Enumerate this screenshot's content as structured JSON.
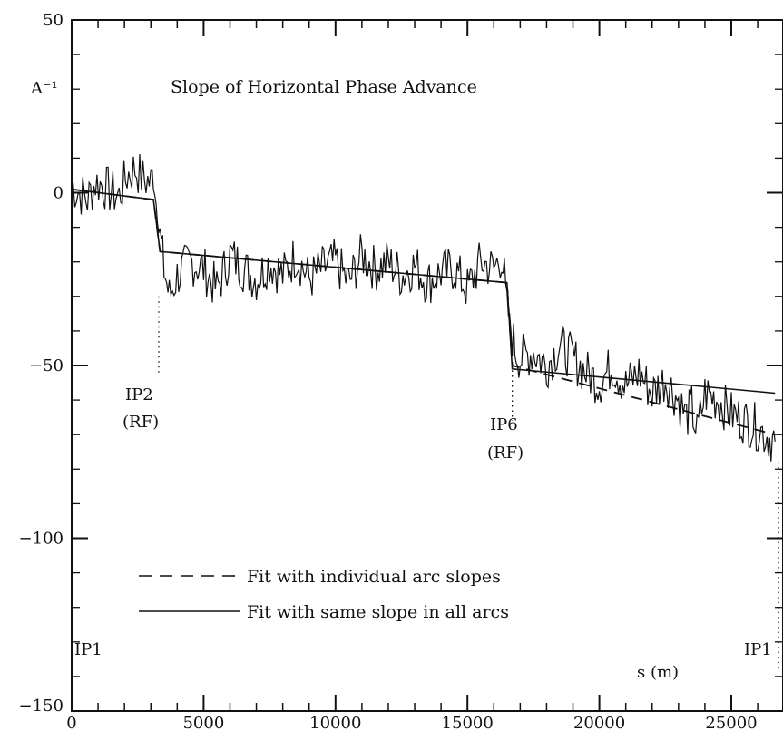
{
  "chart_data": {
    "type": "line",
    "title": "Slope of Horizontal Phase Advance",
    "ylabel": "A⁻¹",
    "xlabel": "s (m)",
    "xlim": [
      0,
      26659
    ],
    "ylim": [
      -150,
      50
    ],
    "xticks": [
      "0",
      "5000",
      "10000",
      "15000",
      "20000",
      "25000"
    ],
    "yticks": [
      "50",
      "0",
      "−50",
      "−100",
      "−150"
    ],
    "grid": false,
    "legend_position": "bottom-left",
    "annotations": [
      {
        "text_lines": [
          "IP2",
          "(RF)"
        ],
        "x": 3300,
        "y": -55
      },
      {
        "text_lines": [
          "IP6",
          "(RF)"
        ],
        "x": 16700,
        "y": -70
      },
      {
        "text_lines": [
          "IP1"
        ],
        "x": 0,
        "y": -140
      },
      {
        "text_lines": [
          "IP1"
        ],
        "x": 26659,
        "y": -140
      }
    ],
    "series": [
      {
        "name": "",
        "style": "noisy",
        "x": [
          0,
          300,
          600,
          900,
          1200,
          1500,
          1800,
          2100,
          2400,
          2700,
          3000,
          3100,
          3200,
          3300,
          3350,
          3500,
          3700,
          4000,
          4500,
          5000,
          5500,
          6000,
          6500,
          7000,
          7500,
          8000,
          8500,
          9000,
          9500,
          10000,
          10500,
          11000,
          11500,
          12000,
          12500,
          13000,
          13500,
          14000,
          14500,
          15000,
          15500,
          16000,
          16300,
          16400,
          16500,
          16600,
          16800,
          17000,
          17500,
          18000,
          18500,
          19000,
          19500,
          20000,
          20500,
          21000,
          21500,
          22000,
          22500,
          23000,
          23300,
          23500,
          23700,
          24000,
          24500,
          25000,
          25500,
          26000,
          26300,
          26659
        ],
        "y": [
          2,
          0,
          -2,
          3,
          2,
          0,
          -1,
          5,
          7,
          4,
          3,
          6,
          -3,
          -8,
          -12,
          -22,
          -30,
          -24,
          -20,
          -22,
          -28,
          -18,
          -22,
          -25,
          -20,
          -24,
          -18,
          -25,
          -22,
          -20,
          -26,
          -18,
          -22,
          -20,
          -24,
          -21,
          -26,
          -23,
          -22,
          -28,
          -20,
          -22,
          -18,
          -25,
          -32,
          -38,
          -45,
          -48,
          -46,
          -50,
          -44,
          -48,
          -52,
          -55,
          -50,
          -56,
          -52,
          -58,
          -54,
          -60,
          -65,
          -62,
          -70,
          -58,
          -60,
          -64,
          -66,
          -68,
          -70,
          -72
        ]
      },
      {
        "name": "Fit with individual arc slopes",
        "style": "dashed",
        "x": [
          0,
          3100,
          3350,
          16500,
          16700,
          26659
        ],
        "y": [
          1,
          -2,
          -17,
          -26,
          -50,
          -70
        ]
      },
      {
        "name": "Fit with same slope in all arcs",
        "style": "solid",
        "x": [
          0,
          3100,
          3350,
          16500,
          16700,
          26659
        ],
        "y": [
          1,
          -2,
          -17,
          -26,
          -51,
          -58
        ]
      }
    ]
  }
}
